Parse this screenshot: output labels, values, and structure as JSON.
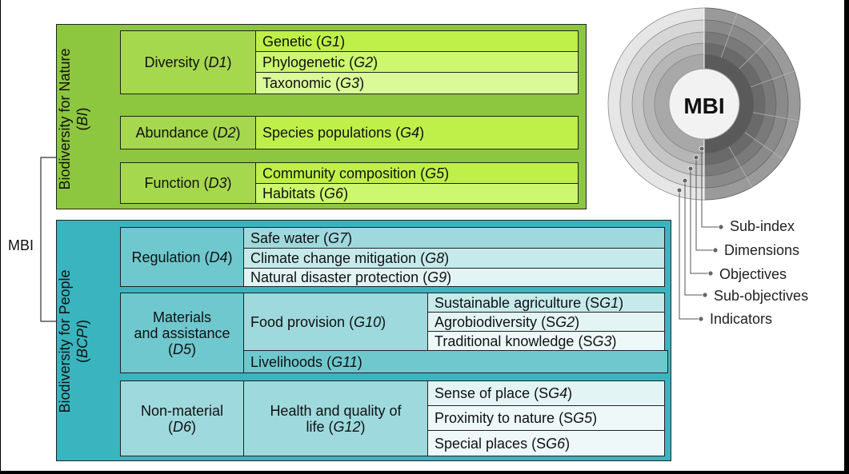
{
  "mbi_label": "MBI",
  "nature": {
    "title": "Biodiversity for Nature",
    "abbr": "BI",
    "colors": {
      "outer": "#8dc63f",
      "dim": "#a6d84e",
      "g1": "#bff04a",
      "g2": "#ccf76e",
      "g3": "#dafa98"
    },
    "dimensions": [
      {
        "name": "Diversity",
        "code": "D1"
      },
      {
        "name": "Abundance",
        "code": "D2"
      },
      {
        "name": "Function",
        "code": "D3"
      }
    ],
    "objectives": [
      {
        "name": "Genetic",
        "code": "G1"
      },
      {
        "name": "Phylogenetic",
        "code": "G2"
      },
      {
        "name": "Taxonomic",
        "code": "G3"
      },
      {
        "name": "Species populations",
        "code": "G4"
      },
      {
        "name": "Community composition",
        "code": "G5"
      },
      {
        "name": "Habitats",
        "code": "G6"
      }
    ]
  },
  "people": {
    "title": "Biodiversity for People",
    "abbr": "BCPI",
    "colors": {
      "outer": "#3ab5bf",
      "dim": "#6fc8ce",
      "obj": "#9ed9dd",
      "sub": "#c6eaec",
      "light": "#e3f4f5"
    },
    "dimensions": [
      {
        "name": "Regulation",
        "code": "D4"
      },
      {
        "name": "Materials and assistance",
        "line1": "Materials",
        "line2": "and assistance",
        "code": "D5"
      },
      {
        "name": "Non-material",
        "code": "D6"
      }
    ],
    "objectives": [
      {
        "name": "Safe water",
        "code": "G7"
      },
      {
        "name": "Climate change mitigation",
        "code": "G8"
      },
      {
        "name": "Natural disaster protection",
        "code": "G9"
      },
      {
        "name": "Food provision",
        "code": "G10"
      },
      {
        "name": "Livelihoods",
        "code": "G11"
      },
      {
        "name": "Health and quality of life",
        "line1": "Health and quality of",
        "line2": "life",
        "code": "G12"
      }
    ],
    "sub_objectives": [
      {
        "name": "Sustainable agriculture",
        "prefix": "S",
        "code": "G1"
      },
      {
        "name": "Agrobiodiversity",
        "prefix": "S",
        "code": "G2"
      },
      {
        "name": "Traditional knowledge",
        "prefix": "S",
        "code": "G3"
      },
      {
        "name": "Sense of place",
        "prefix": "S",
        "code": "G4"
      },
      {
        "name": "Proximity to nature",
        "prefix": "S",
        "code": "G5"
      },
      {
        "name": "Special places",
        "prefix": "S",
        "code": "G6"
      }
    ]
  },
  "legend": {
    "center": "MBI",
    "items": [
      "Sub-index",
      "Dimensions",
      "Objectives",
      "Sub-objectives",
      "Indicators"
    ],
    "ring_colors": [
      "#d9d9d9",
      "#c4c4c4",
      "#adadad",
      "#959595",
      "#7e7e7e",
      "#f2f2f2"
    ]
  }
}
